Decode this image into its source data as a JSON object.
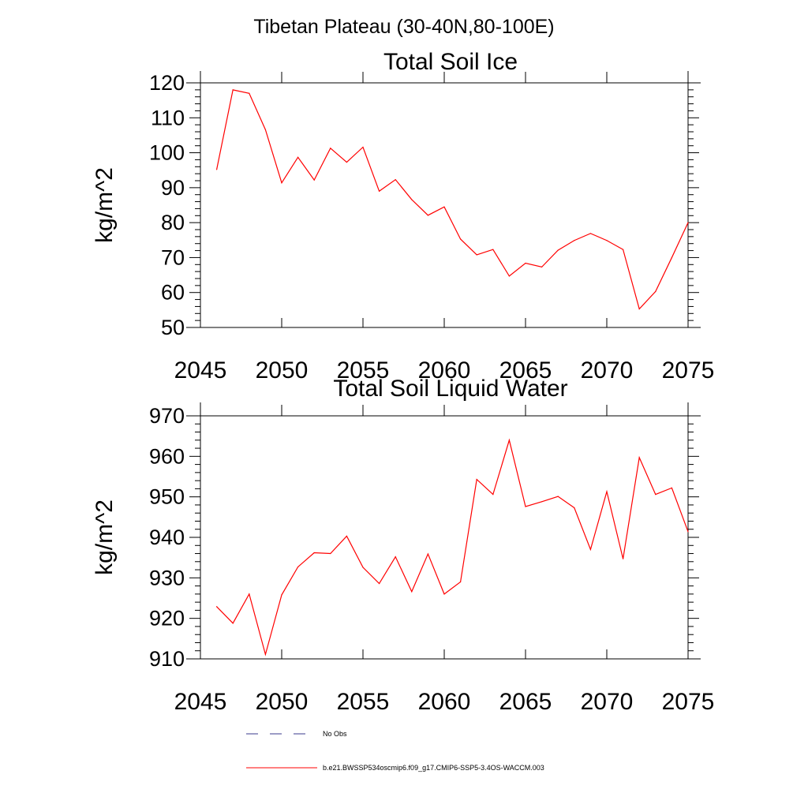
{
  "suptitle": "Tibetan Plateau (30-40N,80-100E)",
  "chart_data": [
    {
      "type": "line",
      "title": "Total Soil Ice",
      "xlabel": "",
      "ylabel": "kg/m^2",
      "xlim": [
        2045,
        2075
      ],
      "ylim": [
        50,
        120
      ],
      "xticks": [
        "2045",
        "2050",
        "2055",
        "2060",
        "2065",
        "2070",
        "2075"
      ],
      "yticks": [
        "50",
        "60",
        "70",
        "80",
        "90",
        "100",
        "110",
        "120"
      ],
      "series": [
        {
          "color": "#ff0000",
          "x": [
            2046,
            2047,
            2048,
            2049,
            2050,
            2051,
            2052,
            2053,
            2054,
            2055,
            2056,
            2057,
            2058,
            2059,
            2060,
            2061,
            2062,
            2063,
            2064,
            2065,
            2066,
            2067,
            2068,
            2069,
            2070,
            2071,
            2072,
            2073,
            2074,
            2075
          ],
          "values": [
            95.2,
            118.0,
            117.0,
            106.6,
            91.4,
            98.7,
            92.2,
            101.3,
            97.3,
            101.6,
            89.0,
            92.3,
            86.6,
            82.1,
            84.5,
            75.3,
            70.8,
            72.3,
            64.7,
            68.4,
            67.3,
            72.1,
            74.9,
            76.9,
            74.9,
            72.3,
            55.3,
            60.3,
            70.0,
            80.0
          ]
        }
      ]
    },
    {
      "type": "line",
      "title": "Total Soil Liquid Water",
      "xlabel": "",
      "ylabel": "kg/m^2",
      "xlim": [
        2045,
        2075
      ],
      "ylim": [
        910,
        970
      ],
      "xticks": [
        "2045",
        "2050",
        "2055",
        "2060",
        "2065",
        "2070",
        "2075"
      ],
      "yticks": [
        "910",
        "920",
        "930",
        "940",
        "950",
        "960",
        "970"
      ],
      "series": [
        {
          "color": "#ff0000",
          "x": [
            2046,
            2047,
            2048,
            2049,
            2050,
            2051,
            2052,
            2053,
            2054,
            2055,
            2056,
            2057,
            2058,
            2059,
            2060,
            2061,
            2062,
            2063,
            2064,
            2065,
            2066,
            2067,
            2068,
            2069,
            2070,
            2071,
            2072,
            2073,
            2074,
            2075
          ],
          "values": [
            922.9,
            918.8,
            926.0,
            911.1,
            925.8,
            932.7,
            936.2,
            936.0,
            940.3,
            932.6,
            928.6,
            935.2,
            926.6,
            935.9,
            926.0,
            929.0,
            954.3,
            950.6,
            964.0,
            947.6,
            948.8,
            950.1,
            947.3,
            937.0,
            951.3,
            934.7,
            959.7,
            950.6,
            952.2,
            941.4
          ]
        }
      ]
    }
  ],
  "legend": {
    "placement": "bottom",
    "items": [
      {
        "label": "No Obs",
        "color": "#3a3a8c",
        "style": "dashed"
      },
      {
        "label": "b.e21.BWSSP534oscmip6.f09_g17.CMIP6-SSP5-3.4OS-WACCM.003",
        "color": "#ff0000",
        "style": "solid"
      }
    ]
  }
}
